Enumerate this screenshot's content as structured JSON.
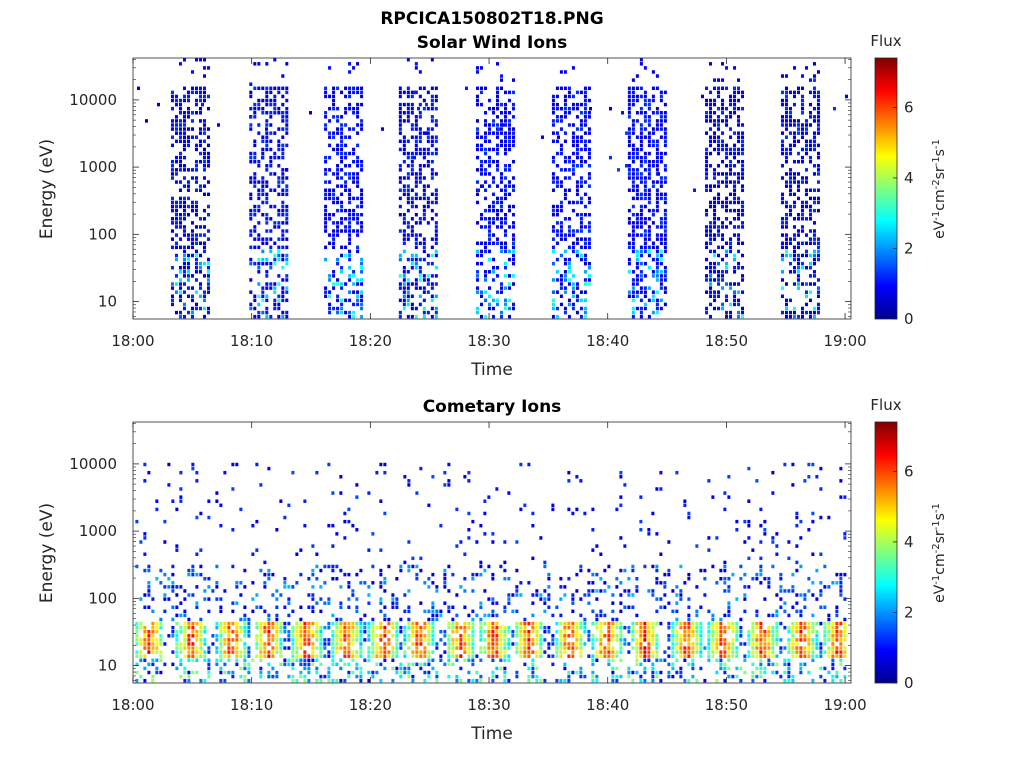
{
  "figure": {
    "title": "RPCICA150802T18.PNG"
  },
  "colorbar": {
    "title": "Flux",
    "range": [
      0,
      7.4
    ],
    "ticks": [
      0,
      2,
      4,
      6
    ],
    "label_parts": [
      "eV",
      "-1",
      "cm",
      "-2",
      "sr",
      "-1",
      "s",
      "-1"
    ],
    "colormap": "jet"
  },
  "chart_data": [
    {
      "type": "heatmap",
      "title": "Solar Wind Ions",
      "xlabel": "Time",
      "ylabel": "Energy (eV)",
      "x_ticks": [
        "18:00",
        "18:10",
        "18:20",
        "18:30",
        "18:40",
        "18:50",
        "19:00"
      ],
      "xlim_minutes": [
        0,
        60.5
      ],
      "y_scale": "log",
      "ylim": [
        5.5,
        42000
      ],
      "y_ticks": [
        10,
        100,
        1000,
        10000
      ],
      "colorbar_range": [
        0,
        7.4
      ],
      "bursts": [
        {
          "start": 3.2,
          "end": 6.3,
          "fill": 0.55
        },
        {
          "start": 9.8,
          "end": 12.9,
          "fill": 0.5
        },
        {
          "start": 16.1,
          "end": 19.3,
          "fill": 0.5
        },
        {
          "start": 22.4,
          "end": 25.7,
          "fill": 0.55
        },
        {
          "start": 28.9,
          "end": 32.1,
          "fill": 0.5
        },
        {
          "start": 35.3,
          "end": 38.6,
          "fill": 0.55
        },
        {
          "start": 41.7,
          "end": 45.0,
          "fill": 0.6
        },
        {
          "start": 48.2,
          "end": 51.3,
          "fill": 0.55
        },
        {
          "start": 54.6,
          "end": 57.8,
          "fill": 0.55
        }
      ]
    },
    {
      "type": "heatmap",
      "title": "Cometary Ions",
      "xlabel": "Time",
      "ylabel": "Energy (eV)",
      "x_ticks": [
        "18:00",
        "18:10",
        "18:20",
        "18:30",
        "18:40",
        "18:50",
        "19:00"
      ],
      "xlim_minutes": [
        0,
        60.5
      ],
      "y_scale": "log",
      "ylim": [
        5.5,
        42000
      ],
      "y_ticks": [
        10,
        100,
        1000,
        10000
      ],
      "colorbar_range": [
        0,
        7.4
      ],
      "hot_spots_minutes": [
        1.2,
        4.8,
        8.2,
        11.3,
        14.5,
        17.8,
        21.0,
        24.0,
        27.5,
        30.3,
        33.2,
        36.7,
        39.8,
        43.0,
        46.5,
        49.6,
        52.9,
        56.2,
        59.3
      ]
    }
  ]
}
